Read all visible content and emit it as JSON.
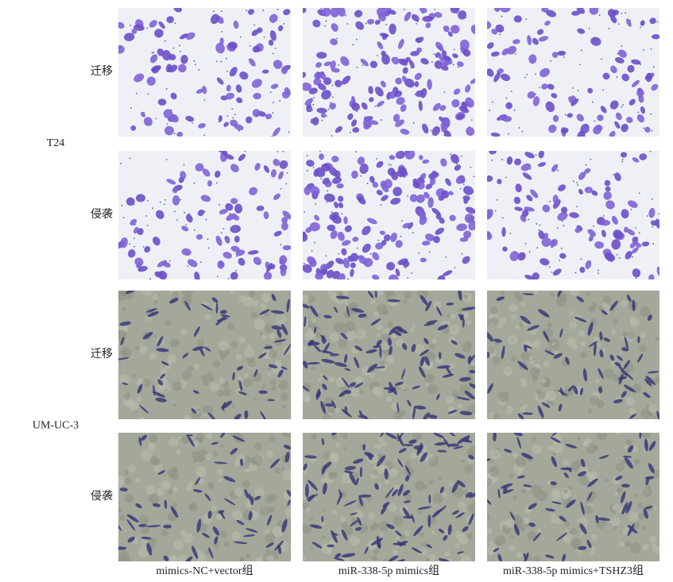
{
  "row_groups": [
    {
      "label": "T24",
      "rows": [
        "迁移",
        "侵袭"
      ]
    },
    {
      "label": "UM-UC-3",
      "rows": [
        "迁移",
        "侵袭"
      ]
    }
  ],
  "columns": [
    "mimics-NC+vector组",
    "miR-338-5p mimics组",
    "miR-338-5p mimics+TSHZ3组"
  ]
}
